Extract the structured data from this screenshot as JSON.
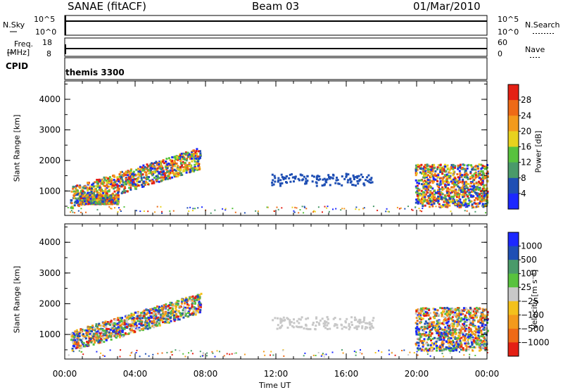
{
  "header": {
    "station": "SANAE (fitACF)",
    "beam": "Beam 03",
    "date": "01/Mar/2010"
  },
  "strip_panels": {
    "nsky_label": "N.Sky",
    "nsky_ticks": [
      "10^5",
      "10^0"
    ],
    "nsearch_label": "N.Search",
    "nsearch_ticks": [
      "10^5",
      "10^0"
    ],
    "freq_label_1": "Freq.",
    "freq_label_2": "[MHz]",
    "freq_ticks": [
      "18",
      "8"
    ],
    "nave_label": "Nave",
    "nave_ticks": [
      "60",
      "0"
    ],
    "cpid_label": "CPID",
    "cpid_value": "themis 3300"
  },
  "chart_data": [
    {
      "type": "heatmap",
      "name": "power",
      "xlabel": "",
      "ylabel": "Slant Range [km]",
      "ylim": [
        200,
        4600
      ],
      "y_ticks": [
        "1000",
        "2000",
        "3000",
        "4000"
      ],
      "colorbar_label": "Power [dB]",
      "colorbar_ticks": [
        "4",
        "8",
        "12",
        "16",
        "20",
        "24",
        "28"
      ],
      "colors": [
        "#1c28ff",
        "#1f4fb4",
        "#4a9a6a",
        "#58c23e",
        "#e8d21e",
        "#f39a1c",
        "#ee6a16",
        "#e42014"
      ],
      "regions": [
        {
          "t0": 0.3,
          "t1": 7.7,
          "r0": 600,
          "r1": 2200,
          "level": "strong"
        },
        {
          "t0": 0.8,
          "t1": 3.0,
          "r0": 600,
          "r1": 900,
          "level": "medium"
        },
        {
          "t0": 11.7,
          "t1": 17.6,
          "r0": 1200,
          "r1": 1600,
          "level": "weak"
        },
        {
          "t0": 19.9,
          "t1": 24.0,
          "r0": 500,
          "r1": 1900,
          "level": "medium"
        }
      ]
    },
    {
      "type": "heatmap",
      "name": "velocity",
      "xlabel": "Time UT",
      "ylabel": "Slant Range [km]",
      "ylim": [
        200,
        4600
      ],
      "y_ticks": [
        "1000",
        "2000",
        "3000",
        "4000"
      ],
      "x_ticks": [
        "00:00",
        "04:00",
        "08:00",
        "12:00",
        "16:00",
        "20:00",
        "00:00"
      ],
      "colorbar_label": "Velocity [m s⁻¹]",
      "colorbar_ticks": [
        "1000",
        "500",
        "100",
        "25",
        "−25",
        "−100",
        "−500",
        "−1000"
      ],
      "colors": [
        "#1c28ff",
        "#1f4fb4",
        "#4a9a6a",
        "#58c23e",
        "#c8c8c8",
        "#f3c11c",
        "#f39a1c",
        "#ee6a16",
        "#e42014"
      ],
      "regions": [
        {
          "t0": 0.3,
          "t1": 7.7,
          "r0": 600,
          "r1": 2200,
          "level": "mixed"
        },
        {
          "t0": 11.7,
          "t1": 17.6,
          "r0": 1200,
          "r1": 1600,
          "level": "ground"
        },
        {
          "t0": 19.9,
          "t1": 24.0,
          "r0": 500,
          "r1": 1900,
          "level": "mixed"
        }
      ]
    }
  ]
}
